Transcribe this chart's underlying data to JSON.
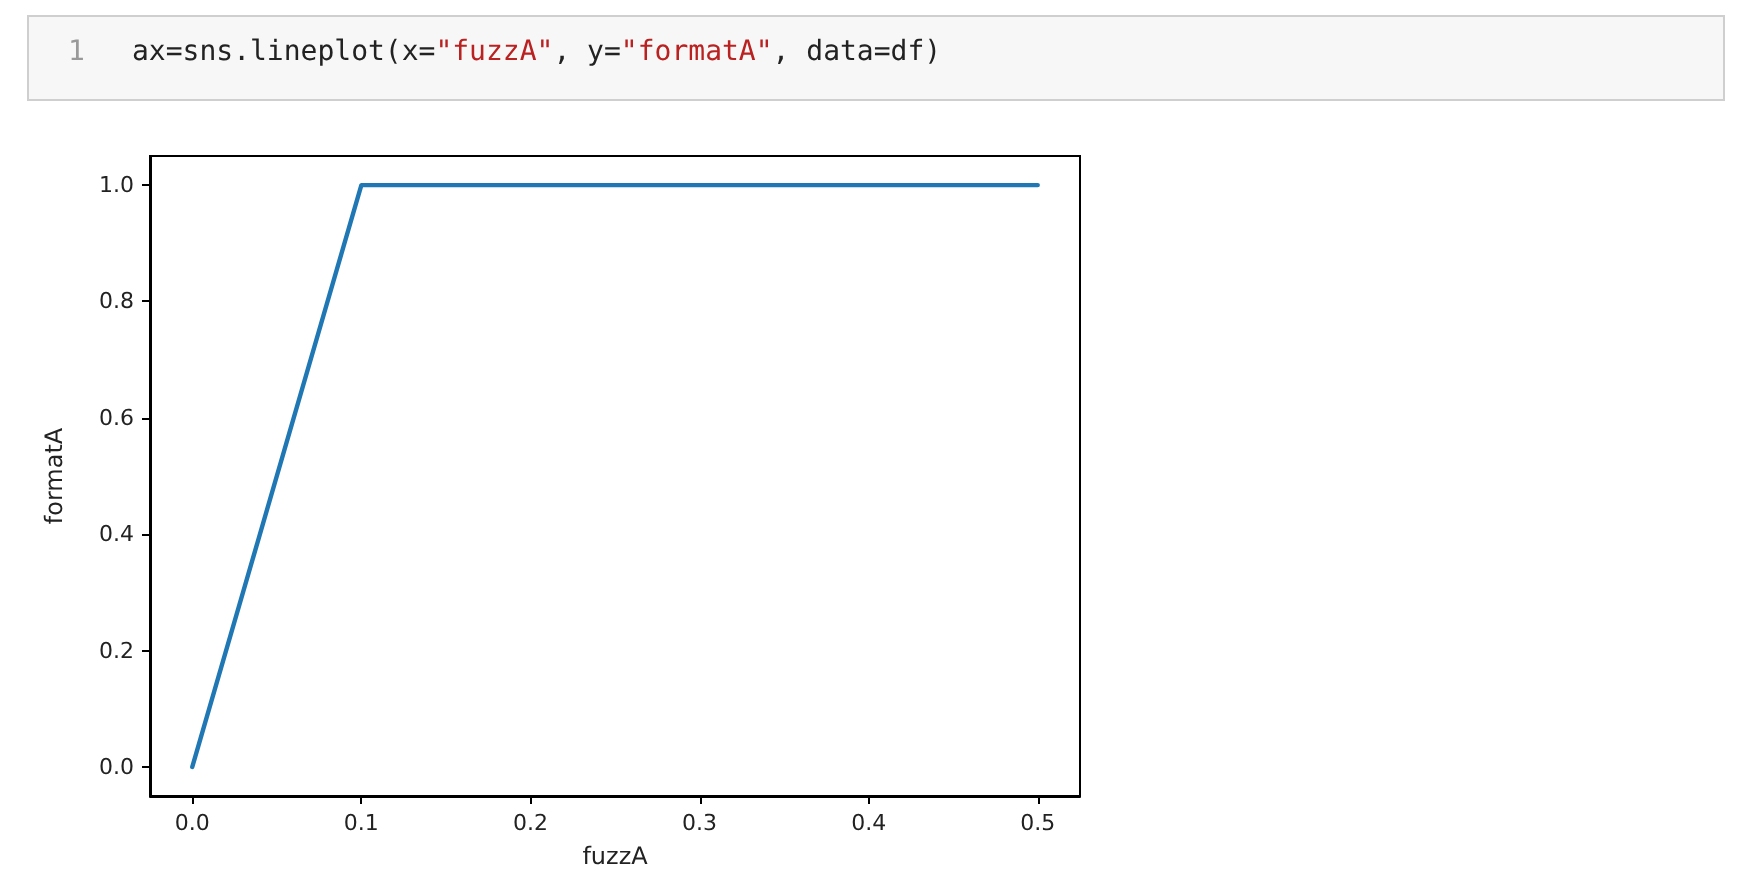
{
  "chart_data": {
    "type": "line",
    "xlabel": "fuzzA",
    "ylabel": "formatA",
    "annotations": [
      "1",
      "ax=sns.lineplot(x=\"fuzzA\", y=\"formatA\", data=df)"
    ],
    "x": [
      0,
      0.1,
      0.5
    ],
    "series": [
      {
        "color": "#1f77b4",
        "values": [
          0,
          1,
          1
        ]
      }
    ],
    "xlim": [
      -0.025,
      0.525
    ],
    "xticks": [
      {
        "value": 0,
        "label": "0.0"
      },
      {
        "value": 0.1,
        "label": "0.1"
      },
      {
        "value": 0.2,
        "label": "0.2"
      },
      {
        "value": 0.3,
        "label": "0.3"
      },
      {
        "value": 0.4,
        "label": "0.4"
      },
      {
        "value": 0.5,
        "label": "0.5"
      }
    ],
    "ylim": [
      -0.05,
      1.05
    ],
    "yticks": [
      {
        "value": 0,
        "label": "0.0"
      },
      {
        "value": 0.2,
        "label": "0.2"
      },
      {
        "value": 0.4,
        "label": "0.4"
      },
      {
        "value": 0.6,
        "label": "0.6"
      },
      {
        "value": 0.8,
        "label": "0.8"
      },
      {
        "value": 1,
        "label": "1.0"
      }
    ],
    "grid": false,
    "marker": "none",
    "line_style": "solid"
  }
}
